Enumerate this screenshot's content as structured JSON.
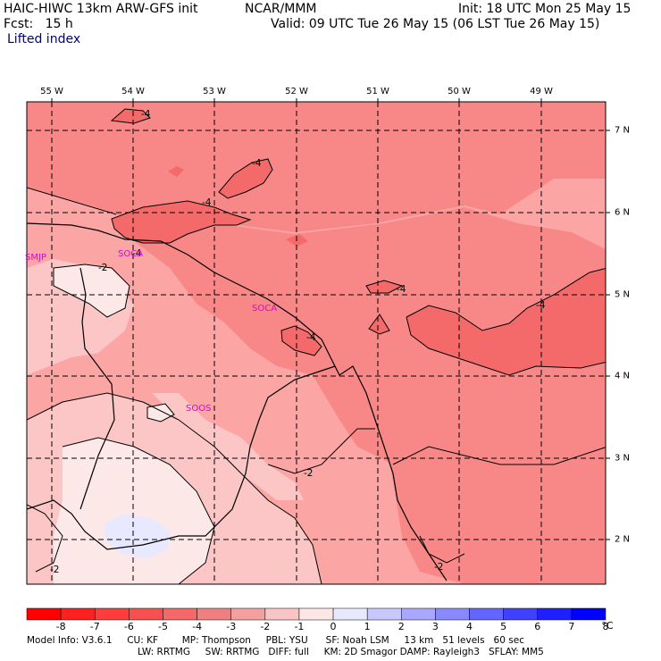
{
  "header": {
    "model": "HAIC-HIWC 13km ARW-GFS init",
    "agency": "NCAR/MMM",
    "init": "Init: 18 UTC Mon 25 May 15",
    "fcst": "Fcst:   15 h",
    "valid": "Valid: 09 UTC Tue 26 May 15 (06 LST Tue 26 May 15)",
    "field": "Lifted index"
  },
  "map": {
    "lon_labels": [
      "55 W",
      "54 W",
      "53 W",
      "52 W",
      "51 W",
      "50 W",
      "49 W"
    ],
    "lat_labels": [
      "7 N",
      "6 N",
      "5 N",
      "4 N",
      "3 N",
      "2 N"
    ],
    "stations": [
      "SMJP",
      "SOCA",
      "SOCA",
      "SOOS"
    ],
    "contour_labels": [
      "-4",
      "-4",
      "-4",
      "-4",
      "-4",
      "-4",
      "-4",
      "-2",
      "-2",
      "-2",
      "-2"
    ]
  },
  "colorbar": {
    "labels": [
      "-8",
      "-7",
      "-6",
      "-5",
      "-4",
      "-3",
      "-2",
      "-1",
      "0",
      "1",
      "2",
      "3",
      "4",
      "5",
      "6",
      "7",
      "8"
    ],
    "unit": "°C",
    "colors": [
      "#ff0000",
      "#ff2020",
      "#ff3c3c",
      "#f85050",
      "#f46868",
      "#f08080",
      "#f4a0a0",
      "#f8c4c4",
      "#fde6e6",
      "#e8e8ff",
      "#c8c8ff",
      "#a8a8ff",
      "#8888ff",
      "#6464ff",
      "#4040ff",
      "#2020ff",
      "#0000ff"
    ]
  },
  "footer": {
    "line1": "Model Info: V3.6.1     CU: KF        MP: Thompson     PBL: YSU      SF: Noah LSM     13 km   51 levels   60 sec",
    "line2": "LW: RRTMG     SW: RRTMG   DIFF: full     KM: 2D Smagor DAMP: Rayleigh3   SFLAY: MM5"
  },
  "legend_colors": {
    "minus6_4": "#f46a6a",
    "minus4_3": "#f88888",
    "minus3_2": "#fba5a5",
    "minus2_1": "#fcc6c6",
    "minus1_0": "#fde8e8",
    "zero_1": "#e8e8fe"
  }
}
